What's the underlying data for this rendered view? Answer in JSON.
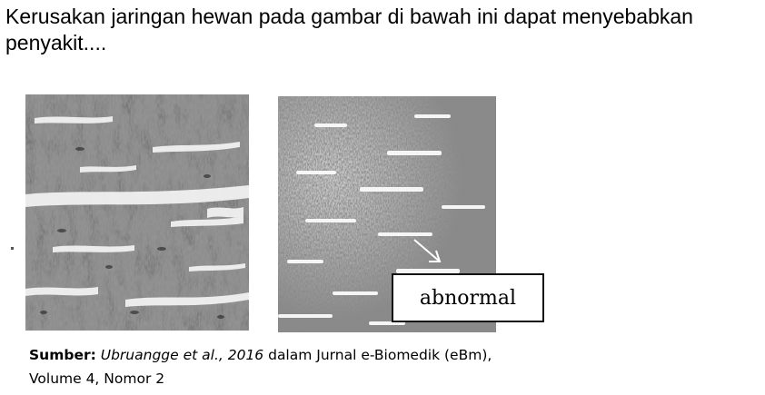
{
  "question": {
    "text": "Kerusakan jaringan hewan pada gambar di bawah ini dapat menyebabkan penyakit...."
  },
  "figure": {
    "label": "abnormal",
    "arrow_icon": "arrow-down-right-icon"
  },
  "caption": {
    "source_label": "Sumber:",
    "authors": "Ubruangge et al., 2016",
    "middle": " dalam Jurnal e-Biomedik (eBm),",
    "line2": "Volume 4, Nomor 2"
  },
  "colors": {
    "background": "#ffffff",
    "tissue_dark": "#4a4a4a",
    "tissue_light": "#9a9a9a"
  }
}
